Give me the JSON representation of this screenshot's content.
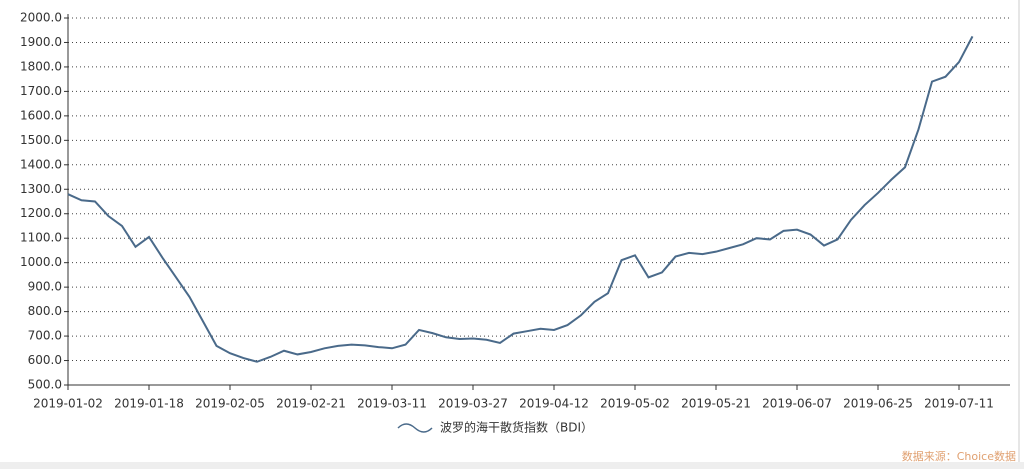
{
  "chart_data": {
    "type": "line",
    "categories": [
      "2019-01-02",
      null,
      null,
      null,
      null,
      null,
      "2019-01-18",
      null,
      null,
      null,
      null,
      null,
      "2019-02-05",
      null,
      null,
      null,
      null,
      null,
      "2019-02-21",
      null,
      null,
      null,
      null,
      null,
      "2019-03-11",
      null,
      null,
      null,
      null,
      null,
      "2019-03-27",
      null,
      null,
      null,
      null,
      null,
      "2019-04-12",
      null,
      null,
      null,
      null,
      null,
      "2019-05-02",
      null,
      null,
      null,
      null,
      null,
      "2019-05-21",
      null,
      null,
      null,
      null,
      null,
      "2019-06-07",
      null,
      null,
      null,
      null,
      null,
      "2019-06-25",
      null,
      null,
      null,
      null,
      null,
      "2019-07-11",
      null
    ],
    "series": [
      {
        "name": "波罗的海干散货指数（BDI）",
        "color": "#4a6a8a",
        "values": [
          1280,
          1255,
          1250,
          1190,
          1150,
          1065,
          1105,
          1020,
          940,
          860,
          760,
          660,
          630,
          610,
          595,
          615,
          640,
          625,
          635,
          650,
          660,
          665,
          662,
          655,
          650,
          665,
          725,
          712,
          695,
          688,
          690,
          685,
          672,
          710,
          720,
          730,
          725,
          745,
          785,
          840,
          875,
          1010,
          1030,
          940,
          960,
          1025,
          1040,
          1035,
          1045,
          1060,
          1075,
          1100,
          1095,
          1130,
          1135,
          1115,
          1070,
          1095,
          1175,
          1235,
          1285,
          1340,
          1390,
          1545,
          1740,
          1760,
          1820,
          1925
        ]
      }
    ],
    "ylim": [
      500,
      2000
    ],
    "yticks": [
      {
        "value": 500,
        "label": "500.0"
      },
      {
        "value": 600,
        "label": "600.0"
      },
      {
        "value": 700,
        "label": "700.0"
      },
      {
        "value": 800,
        "label": "800.0"
      },
      {
        "value": 900,
        "label": "900.0"
      },
      {
        "value": 1000,
        "label": "1000.0"
      },
      {
        "value": 1100,
        "label": "1100.0"
      },
      {
        "value": 1200,
        "label": "1200.0"
      },
      {
        "value": 1300,
        "label": "1300.0"
      },
      {
        "value": 1400,
        "label": "1400.0"
      },
      {
        "value": 1500,
        "label": "1500.0"
      },
      {
        "value": 1600,
        "label": "1600.0"
      },
      {
        "value": 1700,
        "label": "1700.0"
      },
      {
        "value": 1800,
        "label": "1800.0"
      },
      {
        "value": 1900,
        "label": "1900.0"
      },
      {
        "value": 2000,
        "label": "2000.0"
      }
    ],
    "grid": true,
    "legend": "bottom",
    "source": "数据来源：Choice数据"
  }
}
